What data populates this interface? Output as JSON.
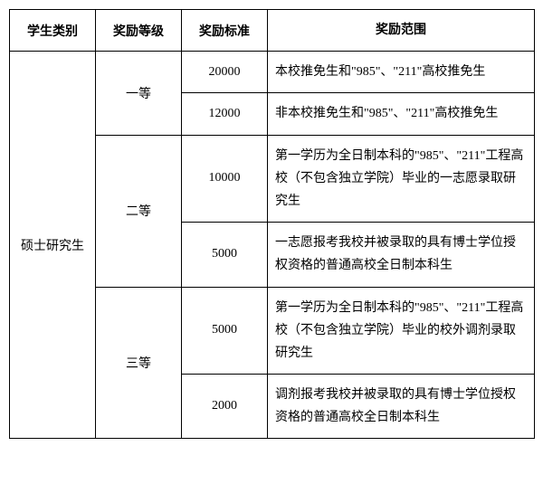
{
  "table": {
    "headers": {
      "category": "学生类别",
      "level": "奖励等级",
      "standard": "奖励标准",
      "scope": "奖励范围"
    },
    "categoryCell": "硕士研究生",
    "rows": [
      {
        "level": "一等",
        "standard": "20000",
        "scope": "本校推免生和\"985\"、\"211\"高校推免生"
      },
      {
        "level": "",
        "standard": "12000",
        "scope": "非本校推免生和\"985\"、\"211\"高校推免生"
      },
      {
        "level": "二等",
        "standard": "10000",
        "scope": "第一学历为全日制本科的\"985\"、\"211\"工程高校（不包含独立学院）毕业的一志愿录取研究生"
      },
      {
        "level": "",
        "standard": "5000",
        "scope": "一志愿报考我校并被录取的具有博士学位授权资格的普通高校全日制本科生"
      },
      {
        "level": "三等",
        "standard": "5000",
        "scope": "第一学历为全日制本科的\"985\"、\"211\"工程高校（不包含独立学院）毕业的校外调剂录取研究生"
      },
      {
        "level": "",
        "standard": "2000",
        "scope": "调剂报考我校并被录取的具有博士学位授权资格的普通高校全日制本科生"
      }
    ]
  }
}
